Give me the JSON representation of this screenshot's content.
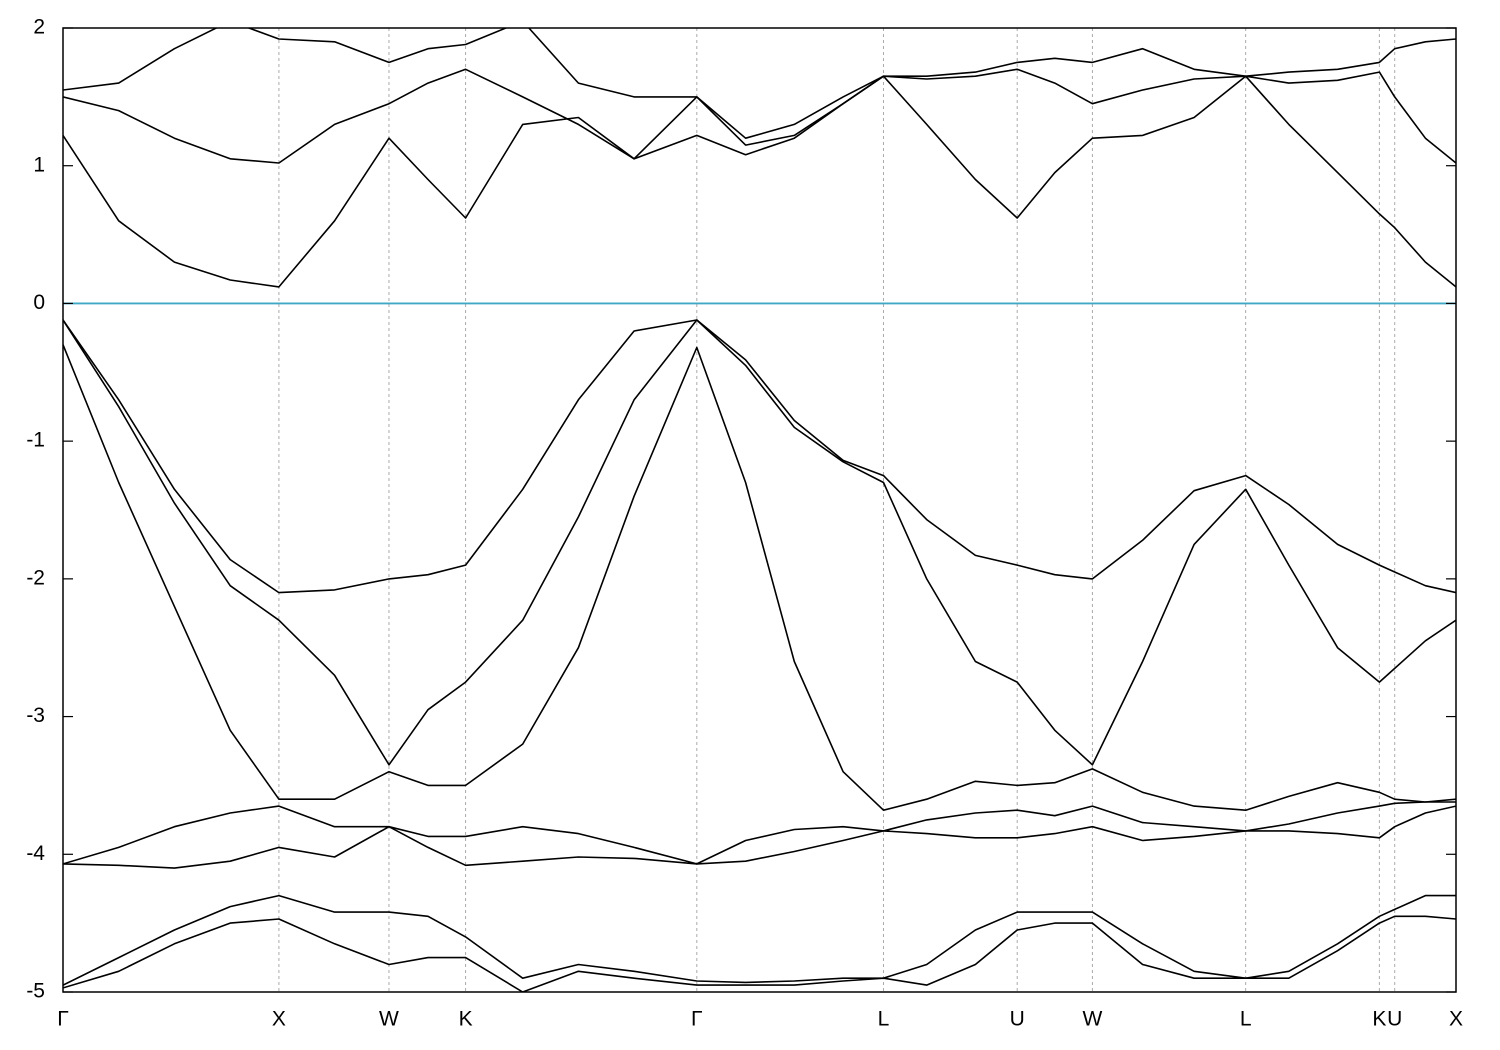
{
  "chart_data": {
    "type": "line",
    "x": [
      0,
      0.04,
      0.08,
      0.12,
      0.155,
      0.195,
      0.234,
      0.262,
      0.289,
      0.33,
      0.37,
      0.41,
      0.455,
      0.49,
      0.525,
      0.56,
      0.589,
      0.62,
      0.655,
      0.685,
      0.712,
      0.739,
      0.775,
      0.812,
      0.849,
      0.88,
      0.915,
      0.945,
      0.956,
      0.978,
      1.0
    ],
    "xlim": [
      0,
      1.0
    ],
    "xticks": [
      {
        "value": 0,
        "label": "Γ"
      },
      {
        "value": 0.155,
        "label": "X"
      },
      {
        "value": 0.234,
        "label": "W"
      },
      {
        "value": 0.289,
        "label": "K"
      },
      {
        "value": 0.455,
        "label": "Γ"
      },
      {
        "value": 0.589,
        "label": "L"
      },
      {
        "value": 0.685,
        "label": "U"
      },
      {
        "value": 0.739,
        "label": "W"
      },
      {
        "value": 0.849,
        "label": "L"
      },
      {
        "value": 0.945,
        "label": "K"
      },
      {
        "value": 0.956,
        "label": "U"
      },
      {
        "value": 1.0,
        "label": "X"
      }
    ],
    "ylim": [
      -5,
      2
    ],
    "yticks": [
      -5,
      -4,
      -3,
      -2,
      -1,
      0,
      1,
      2
    ],
    "grid": true,
    "hline": 0,
    "hline_color": "#3fa9c5",
    "series": [
      {
        "color": "#000000",
        "values": [
          -0.12,
          -0.7,
          -1.35,
          -1.86,
          -2.1,
          -2.08,
          -2.0,
          -1.97,
          -1.9,
          -1.35,
          -0.7,
          -0.2,
          -0.12,
          -0.41,
          -0.85,
          -1.14,
          -1.25,
          -1.57,
          -1.83,
          -1.9,
          -1.97,
          -2.0,
          -1.72,
          -1.36,
          -1.25,
          -1.46,
          -1.75,
          -1.9,
          -1.95,
          -2.05,
          -2.1
        ]
      },
      {
        "color": "#000000",
        "values": [
          -0.12,
          -0.75,
          -1.45,
          -2.05,
          -2.3,
          -2.7,
          -3.35,
          -2.95,
          -2.75,
          -2.3,
          -1.55,
          -0.7,
          -0.12,
          -0.45,
          -0.9,
          -1.15,
          -1.3,
          -2.0,
          -2.6,
          -2.75,
          -3.1,
          -3.35,
          -2.6,
          -1.75,
          -1.35,
          -1.9,
          -2.5,
          -2.75,
          -2.65,
          -2.45,
          -2.3
        ]
      },
      {
        "color": "#000000",
        "values": [
          -0.3,
          -1.3,
          -2.2,
          -3.1,
          -3.6,
          -3.6,
          -3.4,
          -3.5,
          -3.5,
          -3.2,
          -2.5,
          -1.4,
          -0.32,
          -1.3,
          -2.6,
          -3.4,
          -3.68,
          -3.6,
          -3.47,
          -3.5,
          -3.48,
          -3.38,
          -3.55,
          -3.65,
          -3.68,
          -3.58,
          -3.48,
          -3.55,
          -3.6,
          -3.62,
          -3.62
        ]
      },
      {
        "color": "#000000",
        "values": [
          -4.07,
          -3.95,
          -3.8,
          -3.7,
          -3.65,
          -3.8,
          -3.8,
          -3.87,
          -3.87,
          -3.8,
          -3.85,
          -3.95,
          -4.07,
          -3.9,
          -3.82,
          -3.8,
          -3.83,
          -3.75,
          -3.7,
          -3.68,
          -3.72,
          -3.65,
          -3.77,
          -3.8,
          -3.83,
          -3.78,
          -3.7,
          -3.65,
          -3.63,
          -3.62,
          -3.6
        ]
      },
      {
        "color": "#000000",
        "values": [
          -4.07,
          -4.08,
          -4.1,
          -4.05,
          -3.95,
          -4.02,
          -3.8,
          -3.95,
          -4.08,
          -4.05,
          -4.02,
          -4.03,
          -4.07,
          -4.05,
          -3.98,
          -3.9,
          -3.83,
          -3.85,
          -3.88,
          -3.88,
          -3.85,
          -3.8,
          -3.9,
          -3.87,
          -3.83,
          -3.83,
          -3.85,
          -3.88,
          -3.8,
          -3.7,
          -3.65
        ]
      },
      {
        "color": "#000000",
        "values": [
          -4.95,
          -4.75,
          -4.55,
          -4.38,
          -4.3,
          -4.42,
          -4.42,
          -4.45,
          -4.6,
          -4.9,
          -4.8,
          -4.85,
          -4.92,
          -4.93,
          -4.92,
          -4.9,
          -4.9,
          -4.8,
          -4.55,
          -4.42,
          -4.42,
          -4.42,
          -4.65,
          -4.85,
          -4.9,
          -4.85,
          -4.65,
          -4.45,
          -4.4,
          -4.3,
          -4.3
        ]
      },
      {
        "color": "#000000",
        "values": [
          -4.97,
          -4.85,
          -4.65,
          -4.5,
          -4.47,
          -4.65,
          -4.8,
          -4.75,
          -4.75,
          -5.0,
          -4.85,
          -4.9,
          -4.95,
          -4.95,
          -4.95,
          -4.92,
          -4.9,
          -4.95,
          -4.8,
          -4.55,
          -4.5,
          -4.5,
          -4.8,
          -4.9,
          -4.9,
          -4.9,
          -4.7,
          -4.5,
          -4.45,
          -4.45,
          -4.47
        ]
      },
      {
        "color": "#000000",
        "values": [
          1.22,
          0.6,
          0.3,
          0.17,
          0.12,
          0.6,
          1.2,
          0.9,
          0.62,
          1.3,
          1.35,
          1.05,
          1.22,
          1.08,
          1.2,
          1.45,
          1.65,
          1.3,
          0.9,
          0.62,
          0.95,
          1.2,
          1.22,
          1.35,
          1.65,
          1.3,
          0.95,
          0.65,
          0.55,
          0.3,
          0.12
        ]
      },
      {
        "color": "#000000",
        "values": [
          1.5,
          1.4,
          1.2,
          1.05,
          1.02,
          1.3,
          1.45,
          1.6,
          1.7,
          1.5,
          1.3,
          1.05,
          1.5,
          1.15,
          1.22,
          1.45,
          1.65,
          1.63,
          1.65,
          1.7,
          1.6,
          1.45,
          1.55,
          1.63,
          1.65,
          1.6,
          1.62,
          1.68,
          1.5,
          1.2,
          1.02
        ]
      },
      {
        "color": "#000000",
        "values": [
          1.55,
          1.6,
          1.85,
          2.05,
          1.92,
          1.9,
          1.75,
          1.85,
          1.88,
          2.05,
          1.6,
          1.5,
          1.5,
          1.2,
          1.3,
          1.5,
          1.65,
          1.65,
          1.68,
          1.75,
          1.78,
          1.75,
          1.85,
          1.7,
          1.65,
          1.68,
          1.7,
          1.75,
          1.85,
          1.9,
          1.92
        ]
      }
    ]
  }
}
